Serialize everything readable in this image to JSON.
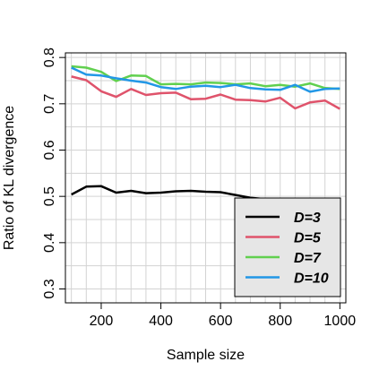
{
  "chart_data": {
    "type": "line",
    "xlabel": "Sample size",
    "ylabel": "Ratio of KL divergence",
    "xlim": [
      80,
      1020
    ],
    "ylim": [
      0.27,
      0.81
    ],
    "xticks": [
      200,
      400,
      600,
      800,
      1000
    ],
    "yticks": [
      0.3,
      0.4,
      0.5,
      0.6,
      0.7,
      0.8
    ],
    "xtick_labels": [
      "200",
      "400",
      "600",
      "800",
      "1000"
    ],
    "ytick_labels": [
      "0.3",
      "0.4",
      "0.5",
      "0.6",
      "0.7",
      "0.8"
    ],
    "grid": true,
    "legend_position": "bottom-right",
    "x": [
      100,
      150,
      200,
      250,
      300,
      350,
      400,
      450,
      500,
      550,
      600,
      650,
      700,
      750,
      800,
      850,
      900,
      950,
      1000
    ],
    "series": [
      {
        "name": "D=3",
        "color": "#000000",
        "values": [
          0.504,
          0.521,
          0.522,
          0.508,
          0.512,
          0.507,
          0.508,
          0.511,
          0.512,
          0.51,
          0.509,
          0.503,
          0.497,
          0.494,
          0.493,
          0.492,
          0.491,
          0.49,
          0.489
        ]
      },
      {
        "name": "D=5",
        "color": "#DF536B",
        "values": [
          0.759,
          0.751,
          0.727,
          0.715,
          0.732,
          0.719,
          0.723,
          0.724,
          0.71,
          0.711,
          0.72,
          0.709,
          0.708,
          0.705,
          0.713,
          0.69,
          0.703,
          0.707,
          0.689
        ]
      },
      {
        "name": "D=7",
        "color": "#61D04F",
        "values": [
          0.781,
          0.778,
          0.769,
          0.749,
          0.761,
          0.76,
          0.742,
          0.743,
          0.742,
          0.746,
          0.745,
          0.742,
          0.744,
          0.738,
          0.741,
          0.737,
          0.744,
          0.734,
          0.732
        ]
      },
      {
        "name": "D=10",
        "color": "#2297E6",
        "values": [
          0.778,
          0.763,
          0.761,
          0.755,
          0.75,
          0.746,
          0.736,
          0.732,
          0.737,
          0.739,
          0.736,
          0.741,
          0.734,
          0.731,
          0.73,
          0.741,
          0.726,
          0.732,
          0.733
        ]
      }
    ]
  }
}
